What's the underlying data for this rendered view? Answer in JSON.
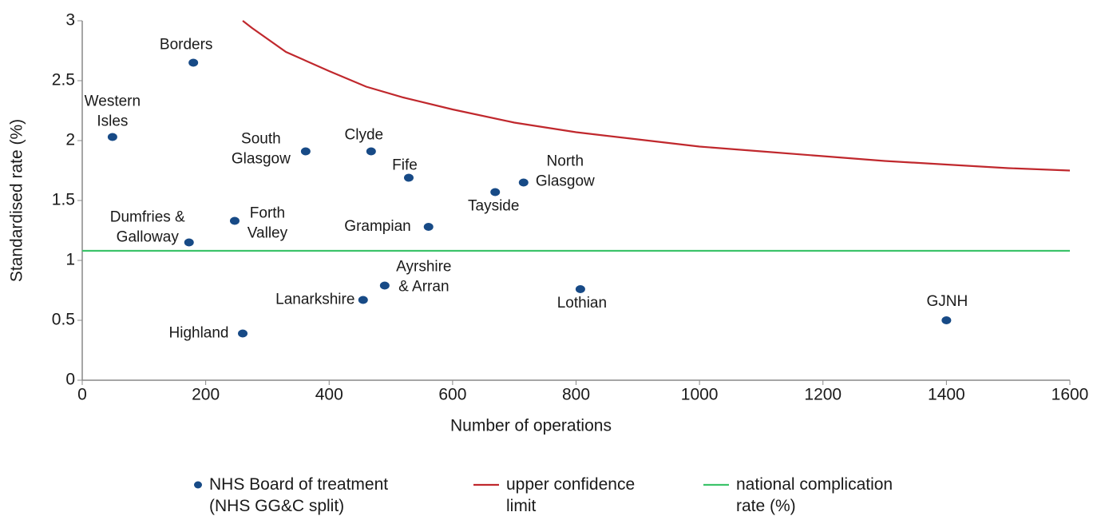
{
  "chart_data": {
    "type": "scatter",
    "x_label": "Number of operations",
    "y_label": "Standardised rate (%)",
    "xlim": [
      0,
      1600
    ],
    "xticks": [
      0,
      200,
      400,
      600,
      800,
      1000,
      1200,
      1400,
      1600
    ],
    "ylim": [
      0,
      3
    ],
    "yticks": [
      0,
      0.5,
      1,
      1.5,
      2,
      2.5,
      3
    ],
    "series": [
      {
        "name": [
          "NHS Board of treatment",
          "(NHS GG&C split)"
        ],
        "color": "#174a86",
        "labels": [
          [
            "Borders"
          ],
          [
            "Western",
            "Isles"
          ],
          [
            "South",
            "Glasgow"
          ],
          [
            "Clyde"
          ],
          [
            "Fife"
          ],
          [
            "Tayside"
          ],
          [
            "North",
            "Glasgow"
          ],
          [
            "Forth",
            "Valley"
          ],
          [
            "Grampian"
          ],
          [
            "Dumfries &",
            "Galloway"
          ],
          [
            "Ayrshire",
            "& Arran"
          ],
          [
            "Lanarkshire"
          ],
          [
            "Lothian"
          ],
          [
            "Highland"
          ],
          [
            "GJNH"
          ]
        ],
        "x": [
          180,
          49,
          362,
          468,
          529,
          669,
          715,
          247,
          561,
          173,
          490,
          455,
          807,
          260,
          1400
        ],
        "values": [
          2.65,
          2.03,
          1.91,
          1.91,
          1.69,
          1.57,
          1.65,
          1.33,
          1.28,
          1.15,
          0.79,
          0.67,
          0.76,
          0.39,
          0.5
        ]
      },
      {
        "name": [
          "upper confidence",
          "limit"
        ],
        "color": "#c0282d",
        "x": [
          260,
          275,
          330,
          400,
          460,
          520,
          600,
          700,
          800,
          900,
          1000,
          1100,
          1200,
          1300,
          1400,
          1500,
          1600
        ],
        "values": [
          3.0,
          2.94,
          2.74,
          2.58,
          2.45,
          2.36,
          2.26,
          2.15,
          2.07,
          2.01,
          1.95,
          1.91,
          1.87,
          1.83,
          1.8,
          1.77,
          1.75
        ]
      },
      {
        "name": [
          "national complication",
          "rate (%)"
        ],
        "color": "#3cc36a",
        "x": [
          0,
          1600
        ],
        "values": [
          1.08,
          1.08
        ]
      }
    ]
  }
}
